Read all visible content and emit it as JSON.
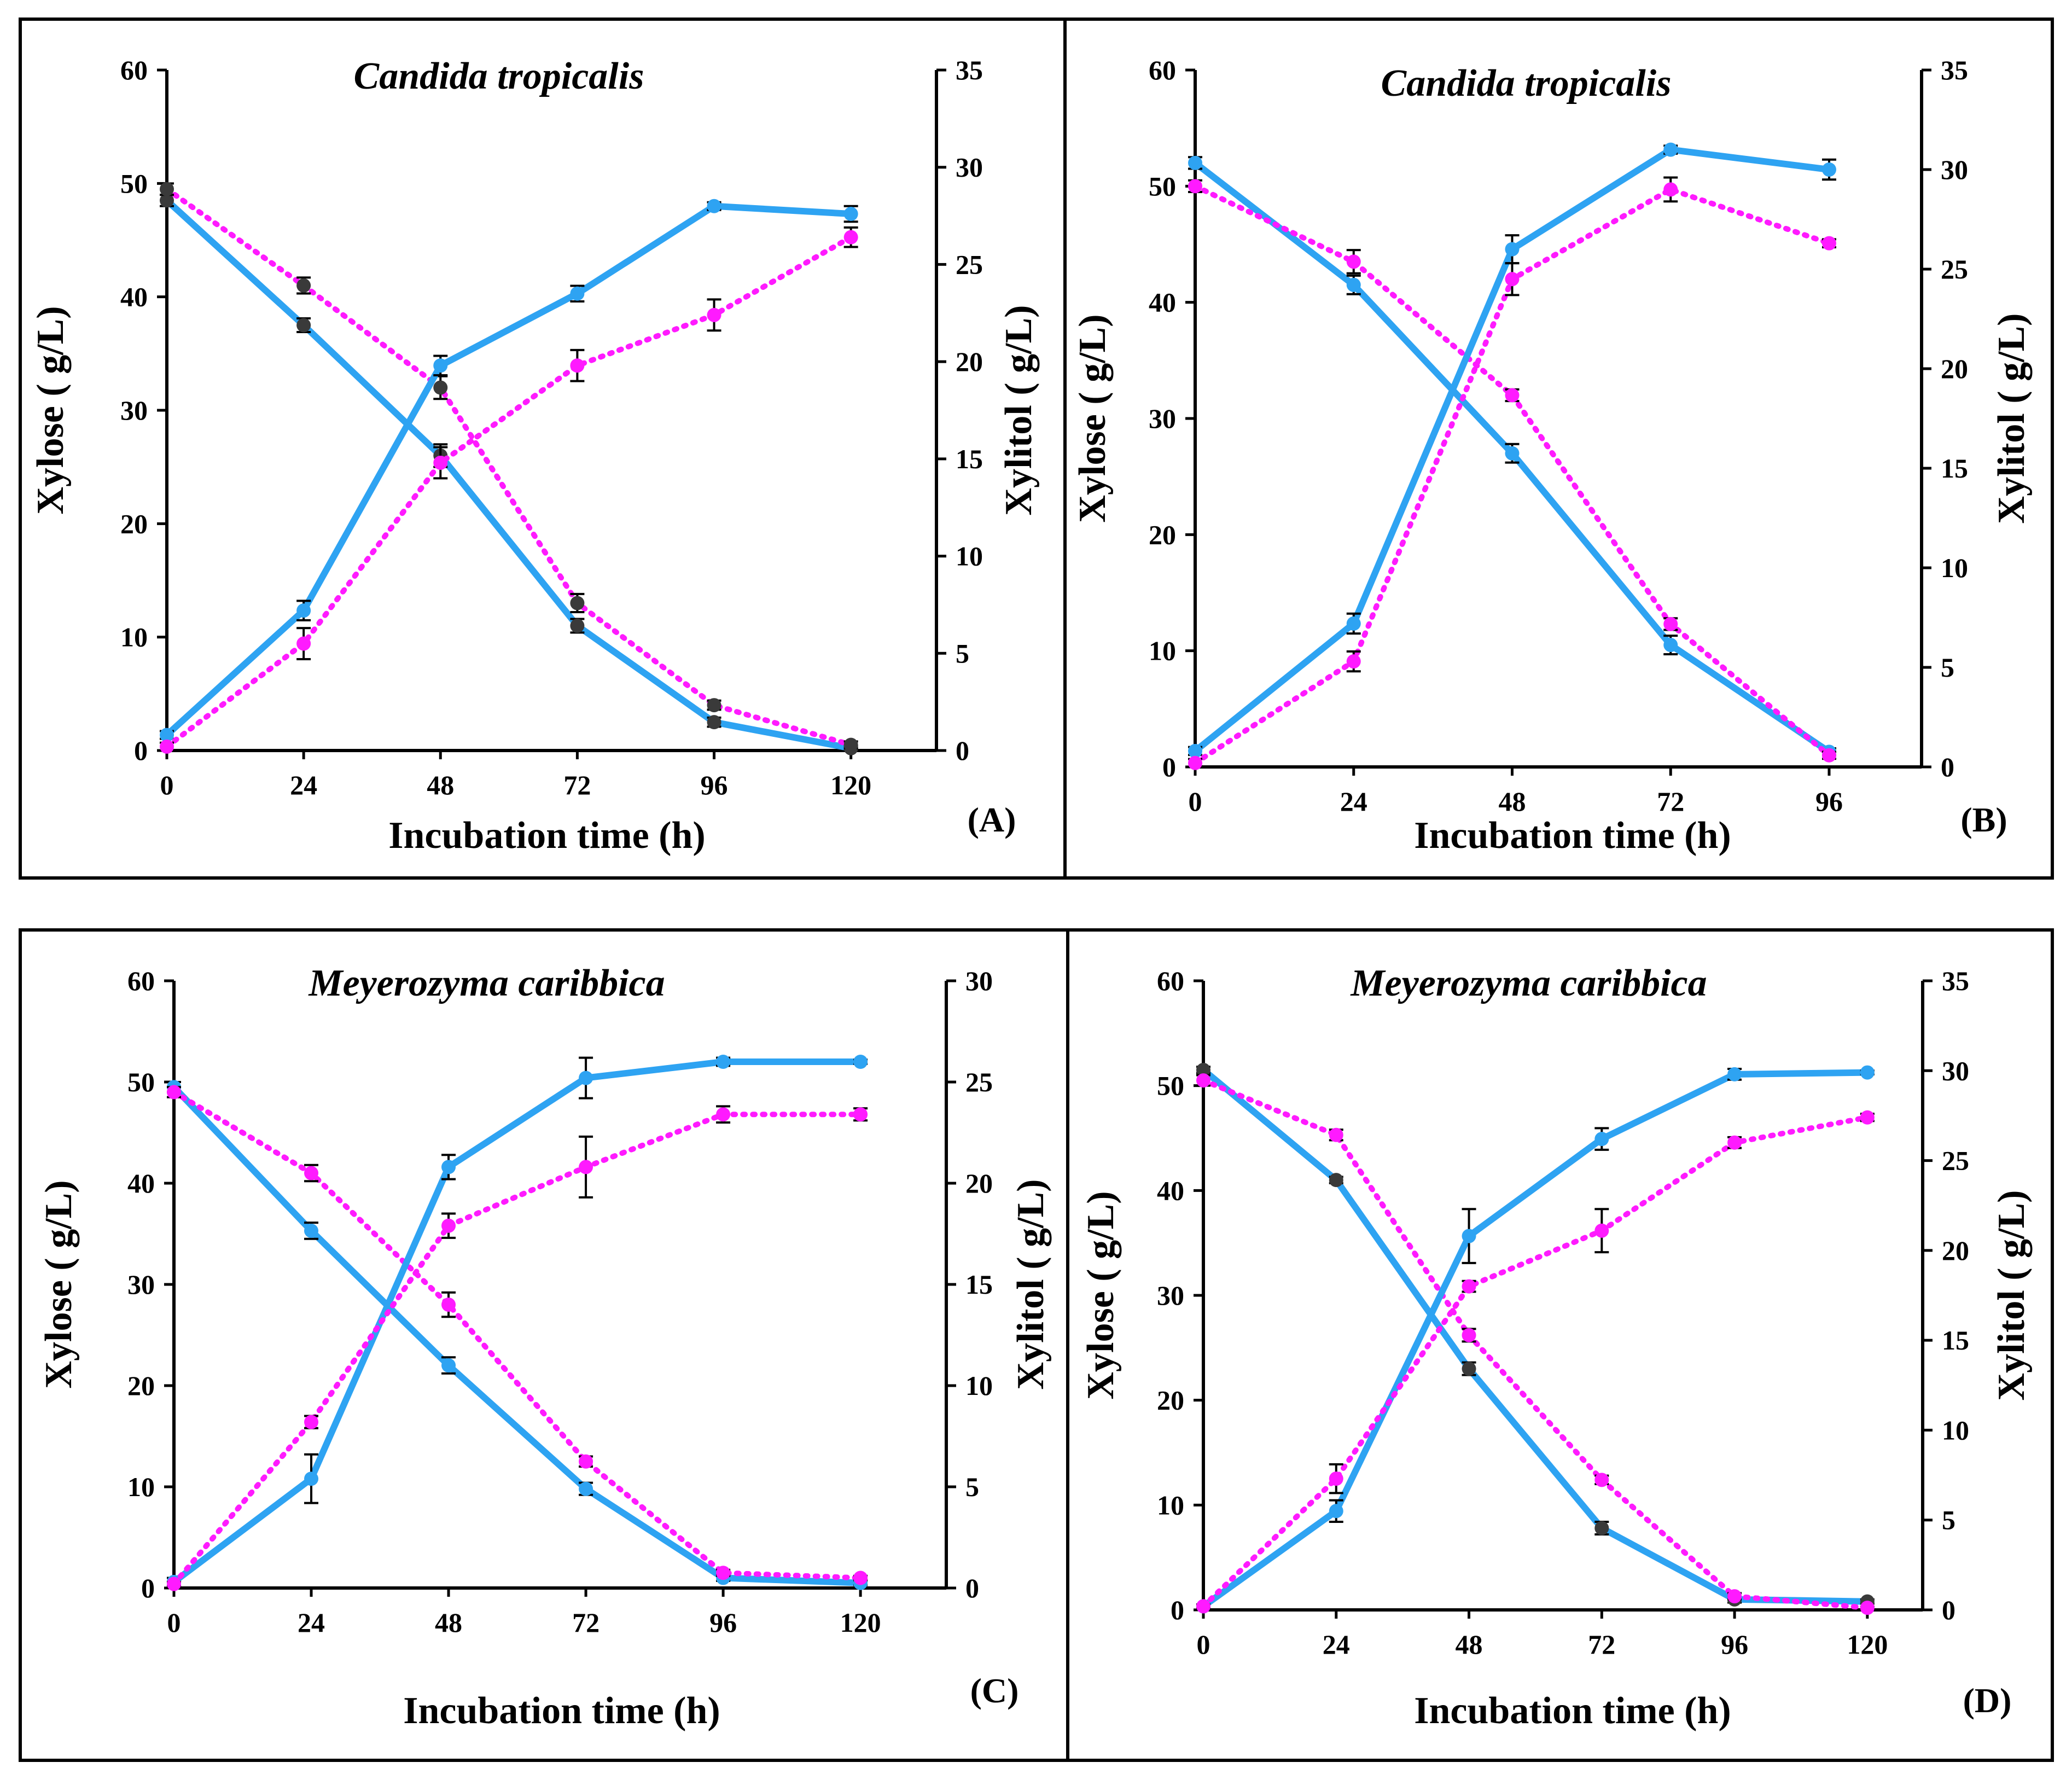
{
  "colors": {
    "solid_line": "#2ea3f2",
    "dotted_line": "#ff1aff",
    "marker_dark": "#3a3a3a",
    "axis": "#000000"
  },
  "chart_data": [
    {
      "panel_label": "(A)",
      "title": "Candida tropicalis",
      "type": "line",
      "xlabel": "Incubation time (h)",
      "ylabel_left": "Xylose ( g/L)",
      "ylabel_right": "Xylitol ( g/L)",
      "xlim": [
        0,
        135
      ],
      "x_ticks": [
        0,
        24,
        48,
        72,
        96,
        120
      ],
      "ylim_left": [
        0,
        60
      ],
      "y_ticks_left": [
        0,
        10,
        20,
        30,
        40,
        50,
        60
      ],
      "ylim_right": [
        0,
        35
      ],
      "y_ticks_right": [
        0,
        5,
        10,
        15,
        20,
        25,
        30,
        35
      ],
      "series": [
        {
          "name": "Xylose (solid)",
          "axis": "left",
          "style": "solid",
          "marker": "dark",
          "x": [
            0,
            24,
            48,
            72,
            96,
            120
          ],
          "values": [
            48.5,
            37.5,
            26,
            11,
            2.5,
            0.2
          ],
          "errors": [
            0.5,
            0.6,
            1.0,
            0.6,
            0.4,
            0.2
          ]
        },
        {
          "name": "Xylose (dotted)",
          "axis": "left",
          "style": "dotted",
          "marker": "dark",
          "x": [
            0,
            24,
            48,
            72,
            96,
            120
          ],
          "values": [
            49.5,
            41,
            32,
            13,
            4,
            0.5
          ],
          "errors": [
            0.5,
            0.7,
            1.0,
            0.8,
            0.4,
            0.3
          ]
        },
        {
          "name": "Xylitol (solid)",
          "axis": "right",
          "style": "solid",
          "marker": "blue",
          "x": [
            0,
            24,
            48,
            72,
            96,
            120
          ],
          "values": [
            0.8,
            7.2,
            19.8,
            23.5,
            28,
            27.6
          ],
          "errors": [
            0.2,
            0.5,
            0.5,
            0.4,
            0.2,
            0.4
          ]
        },
        {
          "name": "Xylitol (dotted)",
          "axis": "right",
          "style": "dotted",
          "marker": "magenta",
          "x": [
            0,
            24,
            48,
            72,
            96,
            120
          ],
          "values": [
            0.2,
            5.5,
            14.8,
            19.8,
            22.4,
            26.4
          ],
          "errors": [
            0.2,
            0.8,
            0.8,
            0.8,
            0.8,
            0.5
          ]
        }
      ]
    },
    {
      "panel_label": "(B)",
      "title": "Candida tropicalis",
      "type": "line",
      "xlabel": "Incubation time (h)",
      "ylabel_left": "Xylose ( g/L)",
      "ylabel_right": "Xylitol ( g/L)",
      "xlim": [
        0,
        110
      ],
      "x_ticks": [
        0,
        24,
        48,
        72,
        96
      ],
      "ylim_left": [
        0,
        60
      ],
      "y_ticks_left": [
        0,
        10,
        20,
        30,
        40,
        50,
        60
      ],
      "ylim_right": [
        0,
        35
      ],
      "y_ticks_right": [
        0,
        5,
        10,
        15,
        20,
        25,
        30,
        35
      ],
      "series": [
        {
          "name": "Xylose (solid)",
          "axis": "left",
          "style": "solid",
          "marker": "blue",
          "x": [
            0,
            24,
            48,
            72,
            96
          ],
          "values": [
            52,
            41.5,
            27,
            10.5,
            1.3
          ],
          "errors": [
            0.5,
            0.8,
            0.8,
            0.8,
            0.3
          ]
        },
        {
          "name": "Xylose (dotted)",
          "axis": "left",
          "style": "dotted",
          "marker": "magenta",
          "x": [
            0,
            24,
            48,
            72,
            96
          ],
          "values": [
            50,
            43.5,
            32,
            12.3,
            1.0
          ],
          "errors": [
            0.5,
            1.0,
            0.5,
            0.5,
            0.3
          ]
        },
        {
          "name": "Xylitol (solid)",
          "axis": "right",
          "style": "solid",
          "marker": "blue",
          "x": [
            0,
            24,
            48,
            72,
            96
          ],
          "values": [
            0.8,
            7.2,
            26,
            31,
            30
          ],
          "errors": [
            0.2,
            0.5,
            0.7,
            0.2,
            0.5
          ]
        },
        {
          "name": "Xylitol (dotted)",
          "axis": "right",
          "style": "dotted",
          "marker": "magenta",
          "x": [
            0,
            24,
            48,
            72,
            96
          ],
          "values": [
            0.2,
            5.3,
            24.5,
            29,
            26.3
          ],
          "errors": [
            0.2,
            0.5,
            0.8,
            0.6,
            0.2
          ]
        }
      ]
    },
    {
      "panel_label": "(C)",
      "title": "Meyerozyma caribbica",
      "type": "line",
      "xlabel": "Incubation time (h)",
      "ylabel_left": "Xylose ( g/L)",
      "ylabel_right": "Xylitol ( g/L)",
      "xlim": [
        0,
        135
      ],
      "x_ticks": [
        0,
        24,
        48,
        72,
        96,
        120
      ],
      "ylim_left": [
        0,
        60
      ],
      "y_ticks_left": [
        0,
        10,
        20,
        30,
        40,
        50,
        60
      ],
      "ylim_right": [
        0,
        30
      ],
      "y_ticks_right": [
        0,
        5,
        10,
        15,
        20,
        25,
        30
      ],
      "series": [
        {
          "name": "Xylose (solid)",
          "axis": "left",
          "style": "solid",
          "marker": "blue",
          "x": [
            0,
            24,
            48,
            72,
            96,
            120
          ],
          "values": [
            49.5,
            35.3,
            22,
            9.8,
            1.0,
            0.5
          ],
          "errors": [
            0.5,
            0.8,
            0.8,
            0.6,
            0.3,
            0.2
          ]
        },
        {
          "name": "Xylose (dotted)",
          "axis": "left",
          "style": "dotted",
          "marker": "magenta",
          "x": [
            0,
            24,
            48,
            72,
            96,
            120
          ],
          "values": [
            49,
            41,
            28,
            12.5,
            1.5,
            1.0
          ],
          "errors": [
            0.5,
            0.8,
            1.2,
            0.5,
            0.3,
            0.2
          ]
        },
        {
          "name": "Xylitol (solid)",
          "axis": "right",
          "style": "solid",
          "marker": "blue",
          "x": [
            0,
            24,
            48,
            72,
            96,
            120
          ],
          "values": [
            0.3,
            5.4,
            20.8,
            25.2,
            26,
            26
          ],
          "errors": [
            0.2,
            1.2,
            0.6,
            1.0,
            0.2,
            0.1
          ]
        },
        {
          "name": "Xylitol (dotted)",
          "axis": "right",
          "style": "dotted",
          "marker": "magenta",
          "x": [
            0,
            24,
            48,
            72,
            96,
            120
          ],
          "values": [
            0.2,
            8.2,
            17.9,
            20.8,
            23.4,
            23.4
          ],
          "errors": [
            0.1,
            0.3,
            0.6,
            1.5,
            0.4,
            0.3
          ]
        }
      ]
    },
    {
      "panel_label": "(D)",
      "title": "Meyerozyma caribbica",
      "type": "line",
      "xlabel": "Incubation time (h)",
      "ylabel_left": "Xylose ( g/L)",
      "ylabel_right": "Xylitol ( g/L)",
      "xlim": [
        0,
        130
      ],
      "x_ticks": [
        0,
        24,
        48,
        72,
        96,
        120
      ],
      "ylim_left": [
        0,
        60
      ],
      "y_ticks_left": [
        0,
        10,
        20,
        30,
        40,
        50,
        60
      ],
      "ylim_right": [
        0,
        35
      ],
      "y_ticks_right": [
        0,
        5,
        10,
        15,
        20,
        25,
        30,
        35
      ],
      "series": [
        {
          "name": "Xylose (solid)",
          "axis": "left",
          "style": "solid",
          "marker": "dark",
          "x": [
            0,
            24,
            48,
            72,
            96,
            120
          ],
          "values": [
            51.5,
            41,
            23,
            7.8,
            1.0,
            0.8
          ],
          "errors": [
            0.3,
            0.3,
            0.6,
            0.6,
            0.3,
            0.2
          ]
        },
        {
          "name": "Xylose (dotted)",
          "axis": "left",
          "style": "dotted",
          "marker": "magenta",
          "x": [
            0,
            24,
            48,
            72,
            96,
            120
          ],
          "values": [
            50.5,
            45.3,
            26.2,
            12.4,
            1.3,
            0.2
          ],
          "errors": [
            0.5,
            0.5,
            0.6,
            0.4,
            0.3,
            0.1
          ]
        },
        {
          "name": "Xylitol (solid)",
          "axis": "right",
          "style": "solid",
          "marker": "blue",
          "x": [
            0,
            24,
            48,
            72,
            96,
            120
          ],
          "values": [
            0.2,
            5.5,
            20.8,
            26.2,
            29.8,
            29.9
          ],
          "errors": [
            0.1,
            0.6,
            1.5,
            0.6,
            0.3,
            0.1
          ]
        },
        {
          "name": "Xylitol (dotted)",
          "axis": "right",
          "style": "dotted",
          "marker": "magenta",
          "x": [
            0,
            24,
            48,
            72,
            96,
            120
          ],
          "values": [
            0.2,
            7.3,
            18.0,
            21.1,
            26,
            27.4
          ],
          "errors": [
            0.1,
            0.8,
            0.3,
            1.2,
            0.3,
            0.2
          ]
        }
      ]
    }
  ]
}
